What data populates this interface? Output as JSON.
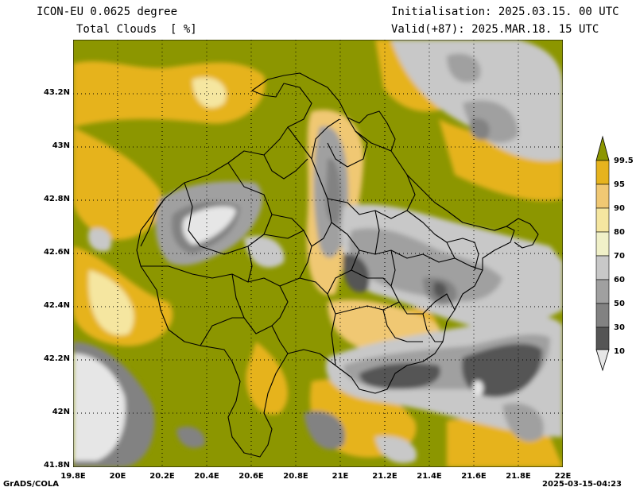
{
  "header": {
    "model": "ICON-EU 0.0625 degree",
    "variable": "Total Clouds  [ %]",
    "init": "Initialisation: 2025.03.15. 00 UTC",
    "valid": "Valid(+87): 2025.MAR.18. 15 UTC"
  },
  "axes": {
    "y_labels": [
      "43.2N",
      "43N",
      "42.8N",
      "42.6N",
      "42.4N",
      "42.2N",
      "42N",
      "41.8N"
    ],
    "x_labels": [
      "19.8E",
      "20E",
      "20.2E",
      "20.4E",
      "20.6E",
      "20.8E",
      "21E",
      "21.2E",
      "21.4E",
      "21.6E",
      "21.8E",
      "22E"
    ],
    "lon_range": [
      19.8,
      22.0
    ],
    "lat_range": [
      41.8,
      43.4
    ],
    "grid": "dotted"
  },
  "colorbar": {
    "levels": [
      "99.5",
      "95",
      "90",
      "80",
      "70",
      "60",
      "50",
      "30",
      "10"
    ],
    "colors": [
      "#8c9600",
      "#e6b31e",
      "#f0c873",
      "#f5e6a0",
      "#f0f0c8",
      "#c8c8c8",
      "#a0a0a0",
      "#828282",
      "#555555",
      "#e6e6e6"
    ]
  },
  "footer": {
    "left": "GrADS/COLA",
    "right": "2025-03-15-04:23"
  }
}
